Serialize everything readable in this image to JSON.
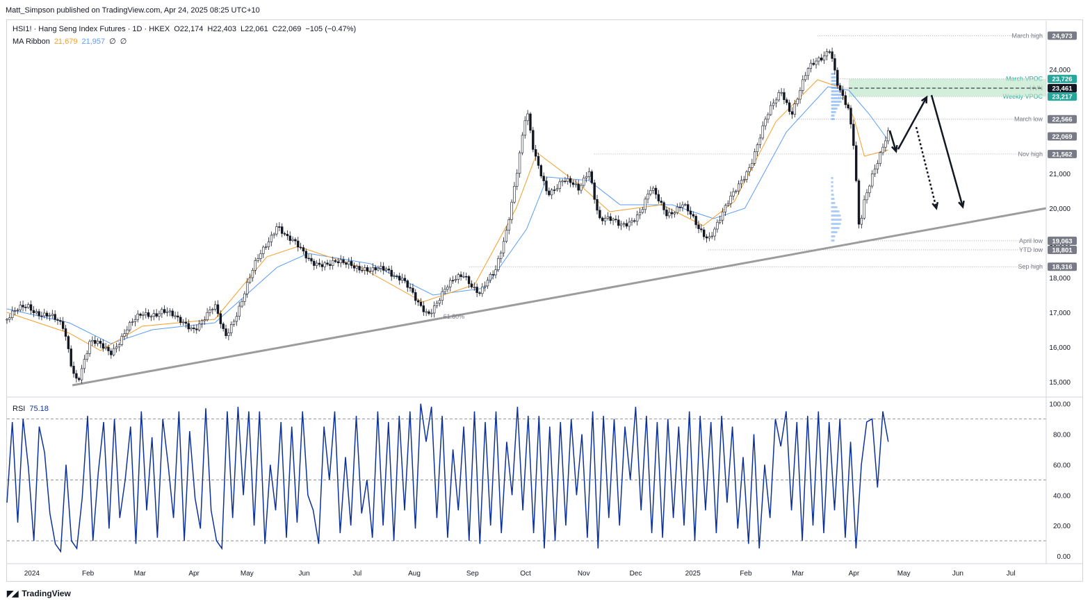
{
  "header": {
    "publisher_line": "Matt_Simpson published on TradingView.com, Apr 24, 2025 08:25 UTC+10"
  },
  "legend": {
    "symbol_line": "HSI1! · Hang Seng Index Futures · 1D · HKEX",
    "open": "O22,174",
    "high": "H22,403",
    "low": "L22,061",
    "close": "C22,069",
    "change": "−105 (−0.47%)",
    "ma_label": "MA Ribbon",
    "ma_fast": "21,679",
    "ma_slow": "21,957",
    "ma_extra1": "∅",
    "ma_extra2": "∅",
    "rsi_label": "RSI",
    "rsi_value": "75.18"
  },
  "colors": {
    "candle": "#131722",
    "ma_fast": "#f59d28",
    "ma_slow": "#5b9cf6",
    "rsi_line": "#0c3299",
    "trendline": "#9c9c9c",
    "zone": "#b8e3c4",
    "tag_green": "#26a69a",
    "tag_black": "#131722",
    "tag_grey": "#787b86"
  },
  "chart_data": [
    {
      "type": "candlestick",
      "ylim": [
        14600,
        25400
      ],
      "y_ticks": [
        "15,000",
        "16,000",
        "17,000",
        "18,000",
        "19,000",
        "20,000",
        "21,000",
        "24,000"
      ],
      "x_ticks": [
        "2024",
        "Feb",
        "Mar",
        "Apr",
        "May",
        "Jun",
        "Jul",
        "Aug",
        "Sep",
        "Oct",
        "Nov",
        "Dec",
        "2025",
        "Feb",
        "Mar",
        "Apr",
        "May",
        "Jun",
        "Jul"
      ],
      "x_tick_pos": [
        0.024,
        0.078,
        0.128,
        0.18,
        0.231,
        0.286,
        0.337,
        0.392,
        0.448,
        0.499,
        0.555,
        0.605,
        0.66,
        0.711,
        0.761,
        0.815,
        0.863,
        0.915,
        0.966
      ],
      "close_series": [
        {
          "t": 0.0,
          "v": 16800
        },
        {
          "t": 0.02,
          "v": 17200
        },
        {
          "t": 0.04,
          "v": 16900
        },
        {
          "t": 0.055,
          "v": 16500
        },
        {
          "t": 0.063,
          "v": 15400
        },
        {
          "t": 0.068,
          "v": 15100
        },
        {
          "t": 0.08,
          "v": 16100
        },
        {
          "t": 0.1,
          "v": 15900
        },
        {
          "t": 0.115,
          "v": 16500
        },
        {
          "t": 0.13,
          "v": 16900
        },
        {
          "t": 0.15,
          "v": 17100
        },
        {
          "t": 0.165,
          "v": 16700
        },
        {
          "t": 0.18,
          "v": 16600
        },
        {
          "t": 0.2,
          "v": 17100
        },
        {
          "t": 0.21,
          "v": 16300
        },
        {
          "t": 0.225,
          "v": 17300
        },
        {
          "t": 0.24,
          "v": 18400
        },
        {
          "t": 0.26,
          "v": 19600
        },
        {
          "t": 0.27,
          "v": 19100
        },
        {
          "t": 0.29,
          "v": 18600
        },
        {
          "t": 0.31,
          "v": 18300
        },
        {
          "t": 0.33,
          "v": 18500
        },
        {
          "t": 0.35,
          "v": 18100
        },
        {
          "t": 0.365,
          "v": 18300
        },
        {
          "t": 0.38,
          "v": 18000
        },
        {
          "t": 0.395,
          "v": 17200
        },
        {
          "t": 0.405,
          "v": 17000
        },
        {
          "t": 0.42,
          "v": 17600
        },
        {
          "t": 0.44,
          "v": 18100
        },
        {
          "t": 0.455,
          "v": 17600
        },
        {
          "t": 0.47,
          "v": 18100
        },
        {
          "t": 0.48,
          "v": 19300
        },
        {
          "t": 0.49,
          "v": 21000
        },
        {
          "t": 0.5,
          "v": 22800
        },
        {
          "t": 0.507,
          "v": 21500
        },
        {
          "t": 0.52,
          "v": 20500
        },
        {
          "t": 0.535,
          "v": 20800
        },
        {
          "t": 0.55,
          "v": 20500
        },
        {
          "t": 0.56,
          "v": 21200
        },
        {
          "t": 0.57,
          "v": 19700
        },
        {
          "t": 0.59,
          "v": 19500
        },
        {
          "t": 0.61,
          "v": 19900
        },
        {
          "t": 0.62,
          "v": 20500
        },
        {
          "t": 0.635,
          "v": 19900
        },
        {
          "t": 0.65,
          "v": 20100
        },
        {
          "t": 0.665,
          "v": 19400
        },
        {
          "t": 0.675,
          "v": 19200
        },
        {
          "t": 0.69,
          "v": 19900
        },
        {
          "t": 0.7,
          "v": 20400
        },
        {
          "t": 0.715,
          "v": 21300
        },
        {
          "t": 0.73,
          "v": 22500
        },
        {
          "t": 0.745,
          "v": 23400
        },
        {
          "t": 0.755,
          "v": 22800
        },
        {
          "t": 0.77,
          "v": 23900
        },
        {
          "t": 0.785,
          "v": 24400
        },
        {
          "t": 0.792,
          "v": 24700
        },
        {
          "t": 0.8,
          "v": 23500
        },
        {
          "t": 0.81,
          "v": 22700
        },
        {
          "t": 0.815,
          "v": 21700
        },
        {
          "t": 0.82,
          "v": 19400
        },
        {
          "t": 0.825,
          "v": 20300
        },
        {
          "t": 0.832,
          "v": 21000
        },
        {
          "t": 0.84,
          "v": 21500
        },
        {
          "t": 0.848,
          "v": 22069
        }
      ],
      "ma_fast_series": [
        {
          "t": 0.0,
          "v": 17000
        },
        {
          "t": 0.06,
          "v": 16400
        },
        {
          "t": 0.09,
          "v": 15900
        },
        {
          "t": 0.13,
          "v": 16600
        },
        {
          "t": 0.2,
          "v": 16800
        },
        {
          "t": 0.25,
          "v": 18600
        },
        {
          "t": 0.28,
          "v": 18900
        },
        {
          "t": 0.34,
          "v": 18300
        },
        {
          "t": 0.4,
          "v": 17300
        },
        {
          "t": 0.45,
          "v": 17800
        },
        {
          "t": 0.49,
          "v": 20000
        },
        {
          "t": 0.51,
          "v": 21600
        },
        {
          "t": 0.55,
          "v": 20700
        },
        {
          "t": 0.58,
          "v": 19900
        },
        {
          "t": 0.63,
          "v": 20100
        },
        {
          "t": 0.67,
          "v": 19500
        },
        {
          "t": 0.7,
          "v": 20200
        },
        {
          "t": 0.74,
          "v": 22500
        },
        {
          "t": 0.78,
          "v": 23700
        },
        {
          "t": 0.8,
          "v": 23500
        },
        {
          "t": 0.815,
          "v": 22600
        },
        {
          "t": 0.825,
          "v": 21500
        },
        {
          "t": 0.848,
          "v": 21679
        }
      ],
      "ma_slow_series": [
        {
          "t": 0.0,
          "v": 17100
        },
        {
          "t": 0.06,
          "v": 16700
        },
        {
          "t": 0.1,
          "v": 16100
        },
        {
          "t": 0.14,
          "v": 16500
        },
        {
          "t": 0.2,
          "v": 16700
        },
        {
          "t": 0.26,
          "v": 18300
        },
        {
          "t": 0.29,
          "v": 18700
        },
        {
          "t": 0.35,
          "v": 18400
        },
        {
          "t": 0.41,
          "v": 17500
        },
        {
          "t": 0.46,
          "v": 17700
        },
        {
          "t": 0.5,
          "v": 19400
        },
        {
          "t": 0.52,
          "v": 20900
        },
        {
          "t": 0.56,
          "v": 20800
        },
        {
          "t": 0.59,
          "v": 20100
        },
        {
          "t": 0.64,
          "v": 20100
        },
        {
          "t": 0.68,
          "v": 19700
        },
        {
          "t": 0.71,
          "v": 20000
        },
        {
          "t": 0.75,
          "v": 22200
        },
        {
          "t": 0.79,
          "v": 23500
        },
        {
          "t": 0.81,
          "v": 23400
        },
        {
          "t": 0.83,
          "v": 22700
        },
        {
          "t": 0.848,
          "v": 21957
        }
      ],
      "trendline": {
        "t0": 0.063,
        "v0": 14900,
        "t1": 1.0,
        "v1": 20000
      },
      "fib_label": "61.80%",
      "levels": [
        {
          "label": "March high",
          "value": 24973,
          "tag": "24,973",
          "tag_style": "grey"
        },
        {
          "label": "March VPOC",
          "value": 23726,
          "tag": "23,726",
          "tag_style": "green"
        },
        {
          "label": "HVN",
          "value": 23461,
          "tag": "23,461",
          "tag_style": "black"
        },
        {
          "label": "Weekly VPOC",
          "value": 23217,
          "tag": "23,217",
          "tag_style": "green"
        },
        {
          "label": "March low",
          "value": 22566,
          "tag": "22,566",
          "tag_style": "grey"
        },
        {
          "label": "",
          "value": 22069,
          "tag": "22,069",
          "tag_style": "grey"
        },
        {
          "label": "Nov high",
          "value": 21562,
          "tag": "21,562",
          "tag_style": "grey"
        },
        {
          "label": "April low",
          "value": 19063,
          "tag": "19,063",
          "tag_style": "grey"
        },
        {
          "label": "YTD low",
          "value": 18801,
          "tag": "18,801",
          "tag_style": "grey"
        },
        {
          "label": "Sep high",
          "value": 18316,
          "tag": "18,316",
          "tag_style": "grey"
        }
      ]
    },
    {
      "type": "line",
      "name": "RSI",
      "ylim": [
        -5,
        103
      ],
      "y_ticks": [
        "100.00",
        "80.00",
        "60.00",
        "40.00",
        "20.00",
        "0.00"
      ],
      "reference_lines": [
        90,
        50,
        10
      ],
      "values": [
        35,
        88,
        22,
        90,
        58,
        10,
        85,
        68,
        28,
        8,
        3,
        60,
        10,
        5,
        38,
        92,
        10,
        55,
        88,
        18,
        90,
        25,
        50,
        85,
        8,
        95,
        30,
        78,
        12,
        90,
        60,
        25,
        95,
        10,
        82,
        38,
        18,
        97,
        30,
        10,
        5,
        95,
        25,
        98,
        40,
        95,
        20,
        95,
        8,
        60,
        30,
        88,
        12,
        85,
        22,
        95,
        40,
        30,
        8,
        85,
        50,
        95,
        15,
        65,
        20,
        92,
        28,
        50,
        12,
        95,
        20,
        88,
        10,
        92,
        30,
        95,
        18,
        100,
        75,
        98,
        25,
        92,
        12,
        70,
        30,
        85,
        10,
        95,
        8,
        88,
        20,
        95,
        15,
        75,
        40,
        98,
        30,
        92,
        15,
        92,
        5,
        85,
        10,
        88,
        20,
        90,
        40,
        80,
        12,
        95,
        5,
        92,
        25,
        90,
        20,
        85,
        50,
        98,
        30,
        92,
        15,
        88,
        12,
        90,
        25,
        85,
        20,
        95,
        10,
        92,
        30,
        88,
        15,
        92,
        35,
        85,
        18,
        65,
        8,
        80,
        5,
        60,
        25,
        90,
        72,
        95,
        30,
        88,
        10,
        92,
        20,
        95,
        15,
        88,
        30,
        90,
        12,
        75,
        5,
        60,
        88,
        90,
        45,
        95,
        75
      ]
    }
  ]
}
